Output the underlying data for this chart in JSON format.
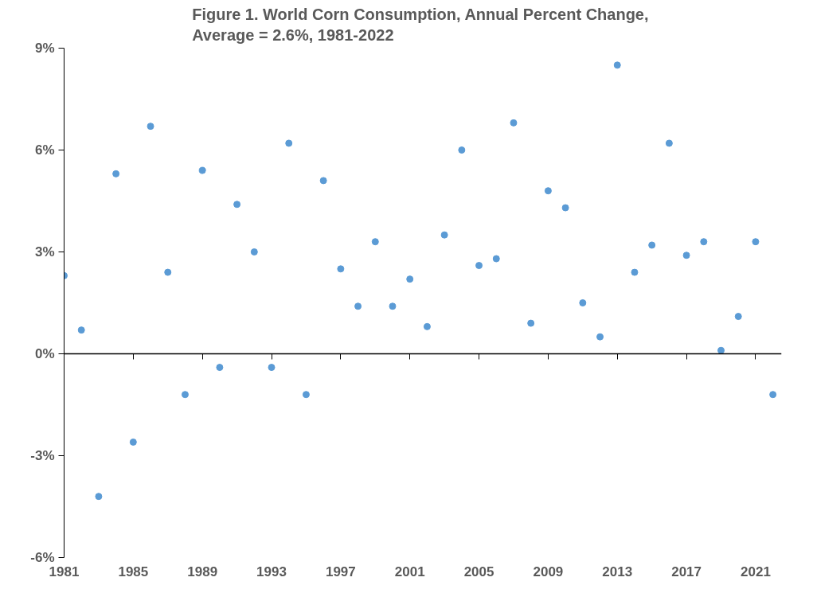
{
  "chart_data": {
    "type": "scatter",
    "title": "Figure 1.  World Corn Consumption, Annual Percent Change,\nAverage = 2.6%, 1981-2022",
    "x": [
      1981,
      1982,
      1983,
      1984,
      1985,
      1986,
      1987,
      1988,
      1989,
      1990,
      1991,
      1992,
      1993,
      1994,
      1995,
      1996,
      1997,
      1998,
      1999,
      2000,
      2001,
      2002,
      2003,
      2004,
      2005,
      2006,
      2007,
      2008,
      2009,
      2010,
      2011,
      2012,
      2013,
      2014,
      2015,
      2016,
      2017,
      2018,
      2019,
      2020,
      2021,
      2022
    ],
    "values": [
      2.3,
      0.7,
      -4.2,
      5.3,
      -2.6,
      6.7,
      2.4,
      -1.2,
      5.4,
      -0.4,
      4.4,
      3.0,
      -0.4,
      6.2,
      -1.2,
      5.1,
      2.5,
      1.4,
      3.3,
      1.4,
      2.2,
      0.8,
      3.5,
      6.0,
      2.6,
      2.8,
      6.8,
      0.9,
      4.8,
      4.3,
      1.5,
      0.5,
      8.5,
      2.4,
      3.2,
      6.2,
      2.9,
      3.3,
      0.1,
      1.1,
      3.3,
      -1.2
    ],
    "color": "#5b9bd5",
    "marker": "circle",
    "grid": false,
    "ref_lines": [
      {
        "axis": "y",
        "value": 0,
        "color": "#000000"
      }
    ],
    "xlim": [
      1981,
      2022.5
    ],
    "xticks": [
      1981,
      1985,
      1989,
      1993,
      1997,
      2001,
      2005,
      2009,
      2013,
      2017,
      2021
    ],
    "ylim": [
      -6,
      9
    ],
    "yticks": [
      {
        "value": -6,
        "label": "-6%"
      },
      {
        "value": -3,
        "label": "-3%"
      },
      {
        "value": 0,
        "label": "0%"
      },
      {
        "value": 3,
        "label": "3%"
      },
      {
        "value": 6,
        "label": "6%"
      },
      {
        "value": 9,
        "label": "9%"
      }
    ]
  }
}
